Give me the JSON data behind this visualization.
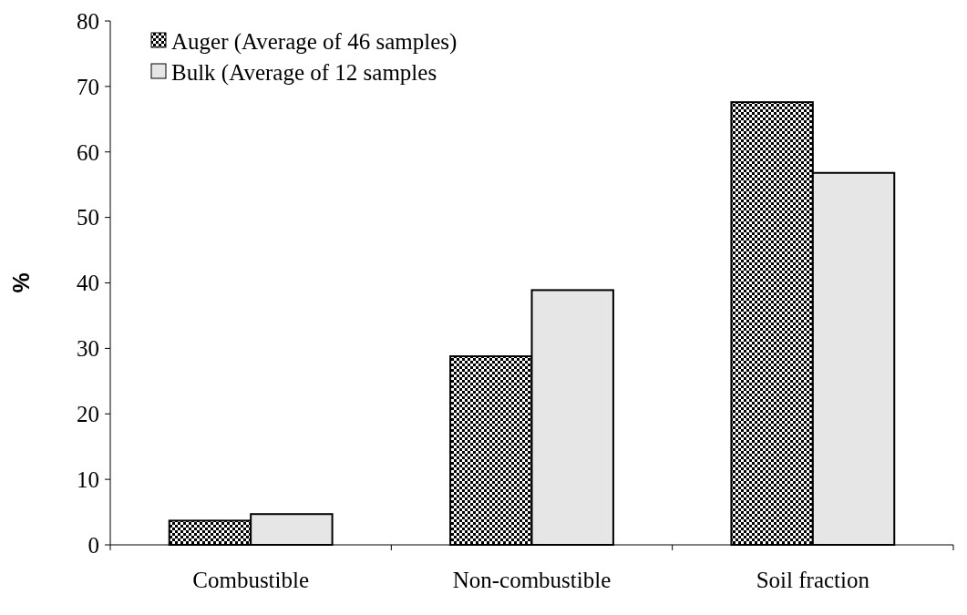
{
  "chart_data": {
    "type": "bar",
    "ylabel": "%",
    "categories": [
      "Combustible",
      "Non-combustible",
      "Soil fraction"
    ],
    "series": [
      {
        "name": "Auger (Average of 46 samples)",
        "color": "#000000",
        "values": [
          3.7,
          28.8,
          67.6
        ]
      },
      {
        "name": "Bulk (Average of 12 samples",
        "color": "#e6e6e6",
        "values": [
          4.7,
          38.9,
          56.8
        ]
      }
    ],
    "ylim": [
      0,
      80
    ],
    "yticks": [
      0,
      10,
      20,
      30,
      40,
      50,
      60,
      70,
      80
    ],
    "grid": false,
    "legend": "top left"
  }
}
